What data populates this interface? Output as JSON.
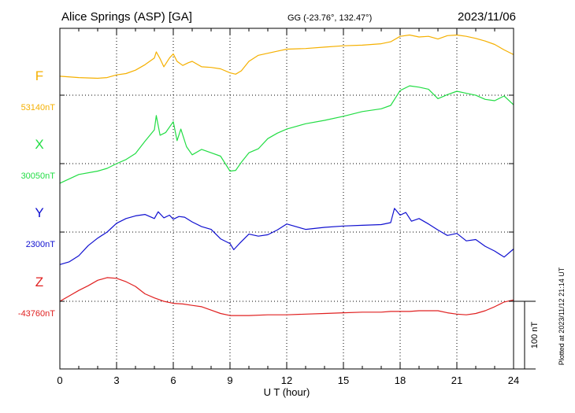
{
  "header": {
    "station": "Alice Springs (ASP)  [GA]",
    "coords": "GG (-23.76°, 132.47°)",
    "date": "2023/11/06"
  },
  "footer": {
    "xlabel": "U T (hour)",
    "scale_label": "100 nT",
    "plotted": "Plotted at 2023/11/12 21:14 UT"
  },
  "chart_data": {
    "type": "line",
    "title": "Alice Springs (ASP)  [GA]",
    "xlabel": "U T (hour)",
    "ylabel": "",
    "xlim": [
      0,
      24
    ],
    "xticks": [
      0,
      3,
      6,
      9,
      12,
      15,
      18,
      21,
      24
    ],
    "scale_bar_nT": 100,
    "grid": true,
    "series": [
      {
        "name": "F",
        "baseline_label": "53140nT",
        "baseline_nT": 53140,
        "color": "#f5b000",
        "x": [
          0,
          1,
          2,
          2.5,
          3,
          3.5,
          4,
          4.5,
          5,
          5.1,
          5.3,
          5.5,
          5.8,
          6,
          6.2,
          6.5,
          6.8,
          7,
          7.5,
          8,
          8.5,
          9,
          9.3,
          9.6,
          10,
          10.5,
          11,
          11.5,
          12,
          13,
          14,
          15,
          16,
          17,
          17.5,
          18,
          18.5,
          19,
          19.5,
          20,
          20.5,
          21,
          21.5,
          22,
          22.5,
          23,
          23.5,
          24
        ],
        "values": [
          53168,
          53166,
          53165,
          53166,
          53170,
          53172,
          53177,
          53185,
          53195,
          53204,
          53194,
          53182,
          53195,
          53201,
          53190,
          53184,
          53188,
          53190,
          53182,
          53181,
          53179,
          53173,
          53171,
          53176,
          53190,
          53199,
          53202,
          53205,
          53208,
          53209,
          53211,
          53213,
          53214,
          53216,
          53219,
          53227,
          53229,
          53226,
          53227,
          53223,
          53228,
          53229,
          53227,
          53224,
          53220,
          53215,
          53207,
          53200
        ]
      },
      {
        "name": "X",
        "baseline_label": "30050nT",
        "baseline_nT": 30050,
        "color": "#22dd44",
        "x": [
          0,
          1,
          2,
          2.5,
          3,
          3.5,
          4,
          4.5,
          5,
          5.1,
          5.3,
          5.6,
          6,
          6.2,
          6.4,
          6.7,
          7,
          7.5,
          8,
          8.5,
          9,
          9.3,
          9.6,
          10,
          10.5,
          11,
          11.5,
          12,
          13,
          14,
          15,
          16,
          17,
          17.5,
          18,
          18.5,
          19,
          19.5,
          20,
          20.5,
          21,
          21.5,
          22,
          22.5,
          23,
          23.5,
          24
        ],
        "values": [
          30021,
          30034,
          30039,
          30043,
          30050,
          30056,
          30065,
          30083,
          30100,
          30121,
          30092,
          30096,
          30112,
          30084,
          30101,
          30075,
          30063,
          30071,
          30066,
          30061,
          30039,
          30040,
          30052,
          30066,
          30072,
          30087,
          30095,
          30101,
          30109,
          30114,
          30120,
          30127,
          30131,
          30136,
          30158,
          30165,
          30163,
          30160,
          30146,
          30152,
          30157,
          30154,
          30151,
          30145,
          30143,
          30150,
          30137
        ]
      },
      {
        "name": "Y",
        "baseline_label": "2300nT",
        "baseline_nT": 2300,
        "color": "#1010d0",
        "x": [
          0,
          0.5,
          1,
          1.5,
          2,
          2.5,
          3,
          3.5,
          4,
          4.5,
          5,
          5.2,
          5.5,
          5.8,
          6,
          6.3,
          6.6,
          7,
          7.5,
          8,
          8.5,
          9,
          9.2,
          9.5,
          10,
          10.5,
          11,
          11.5,
          12,
          13,
          14,
          15,
          16,
          17,
          17.5,
          17.7,
          18,
          18.3,
          18.6,
          19,
          19.5,
          20,
          20.5,
          21,
          21.5,
          22,
          22.5,
          23,
          23.5,
          24
        ],
        "values": [
          2252,
          2256,
          2265,
          2280,
          2291,
          2300,
          2313,
          2320,
          2324,
          2326,
          2320,
          2330,
          2321,
          2325,
          2319,
          2323,
          2322,
          2315,
          2308,
          2304,
          2290,
          2283,
          2274,
          2283,
          2297,
          2294,
          2296,
          2303,
          2312,
          2304,
          2307,
          2309,
          2310,
          2311,
          2314,
          2335,
          2325,
          2329,
          2316,
          2320,
          2312,
          2303,
          2295,
          2298,
          2287,
          2289,
          2279,
          2272,
          2263,
          2275
        ]
      },
      {
        "name": "Z",
        "baseline_label": "-43760nT",
        "baseline_nT": -43760,
        "color": "#e02020",
        "x": [
          0,
          0.5,
          1,
          1.5,
          2,
          2.5,
          3,
          3.5,
          4,
          4.5,
          5,
          5.5,
          6,
          6.5,
          7,
          7.5,
          8,
          8.5,
          9,
          9.5,
          10,
          11,
          12,
          13,
          14,
          15,
          16,
          17,
          17.5,
          18,
          18.5,
          19,
          19.5,
          20,
          20.5,
          21,
          21.5,
          22,
          22.5,
          23,
          23.5,
          24
        ],
        "values": [
          -43760,
          -43752,
          -43744,
          -43737,
          -43729,
          -43725,
          -43726,
          -43731,
          -43738,
          -43749,
          -43755,
          -43760,
          -43763,
          -43764,
          -43766,
          -43768,
          -43773,
          -43778,
          -43781,
          -43781,
          -43781,
          -43780,
          -43780,
          -43779,
          -43778,
          -43777,
          -43776,
          -43776,
          -43775,
          -43775,
          -43775,
          -43774,
          -43774,
          -43774,
          -43777,
          -43779,
          -43780,
          -43778,
          -43774,
          -43768,
          -43761,
          -43758
        ]
      }
    ]
  }
}
